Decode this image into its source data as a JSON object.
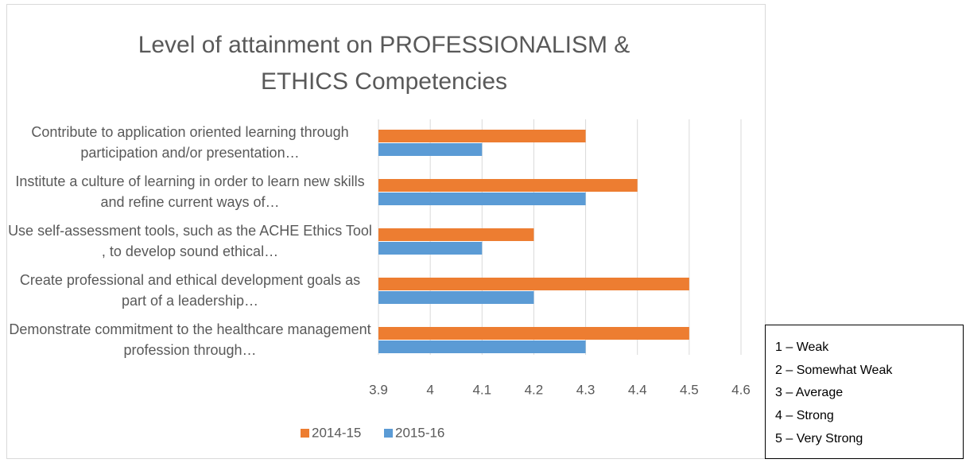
{
  "chart_data": {
    "type": "barh",
    "title": "Level of attainment on PROFESSIONALISM & ETHICS Competencies",
    "categories": [
      "Contribute to application oriented learning through participation and/or presentation…",
      "Institute a culture of learning in order to learn new skills and refine current ways of…",
      "Use self-assessment tools, such as the ACHE Ethics Tool , to develop sound ethical…",
      "Create professional and ethical development goals as part of a leadership…",
      "Demonstrate commitment to the healthcare management profession through…"
    ],
    "series": [
      {
        "name": "2014-15",
        "color": "#ed7d31",
        "values": [
          4.3,
          4.4,
          4.2,
          4.5,
          4.5
        ]
      },
      {
        "name": "2015-16",
        "color": "#5b9bd5",
        "values": [
          4.1,
          4.3,
          4.1,
          4.2,
          4.3
        ]
      }
    ],
    "xlim": [
      3.9,
      4.6
    ],
    "xticks": [
      3.9,
      4,
      4.1,
      4.2,
      4.3,
      4.4,
      4.5,
      4.6
    ],
    "grid": true,
    "legend": "bottom",
    "scale_legend": [
      "1 – Weak",
      "2 – Somewhat Weak",
      "3 – Average",
      "4 – Strong",
      "5 – Very Strong"
    ]
  }
}
